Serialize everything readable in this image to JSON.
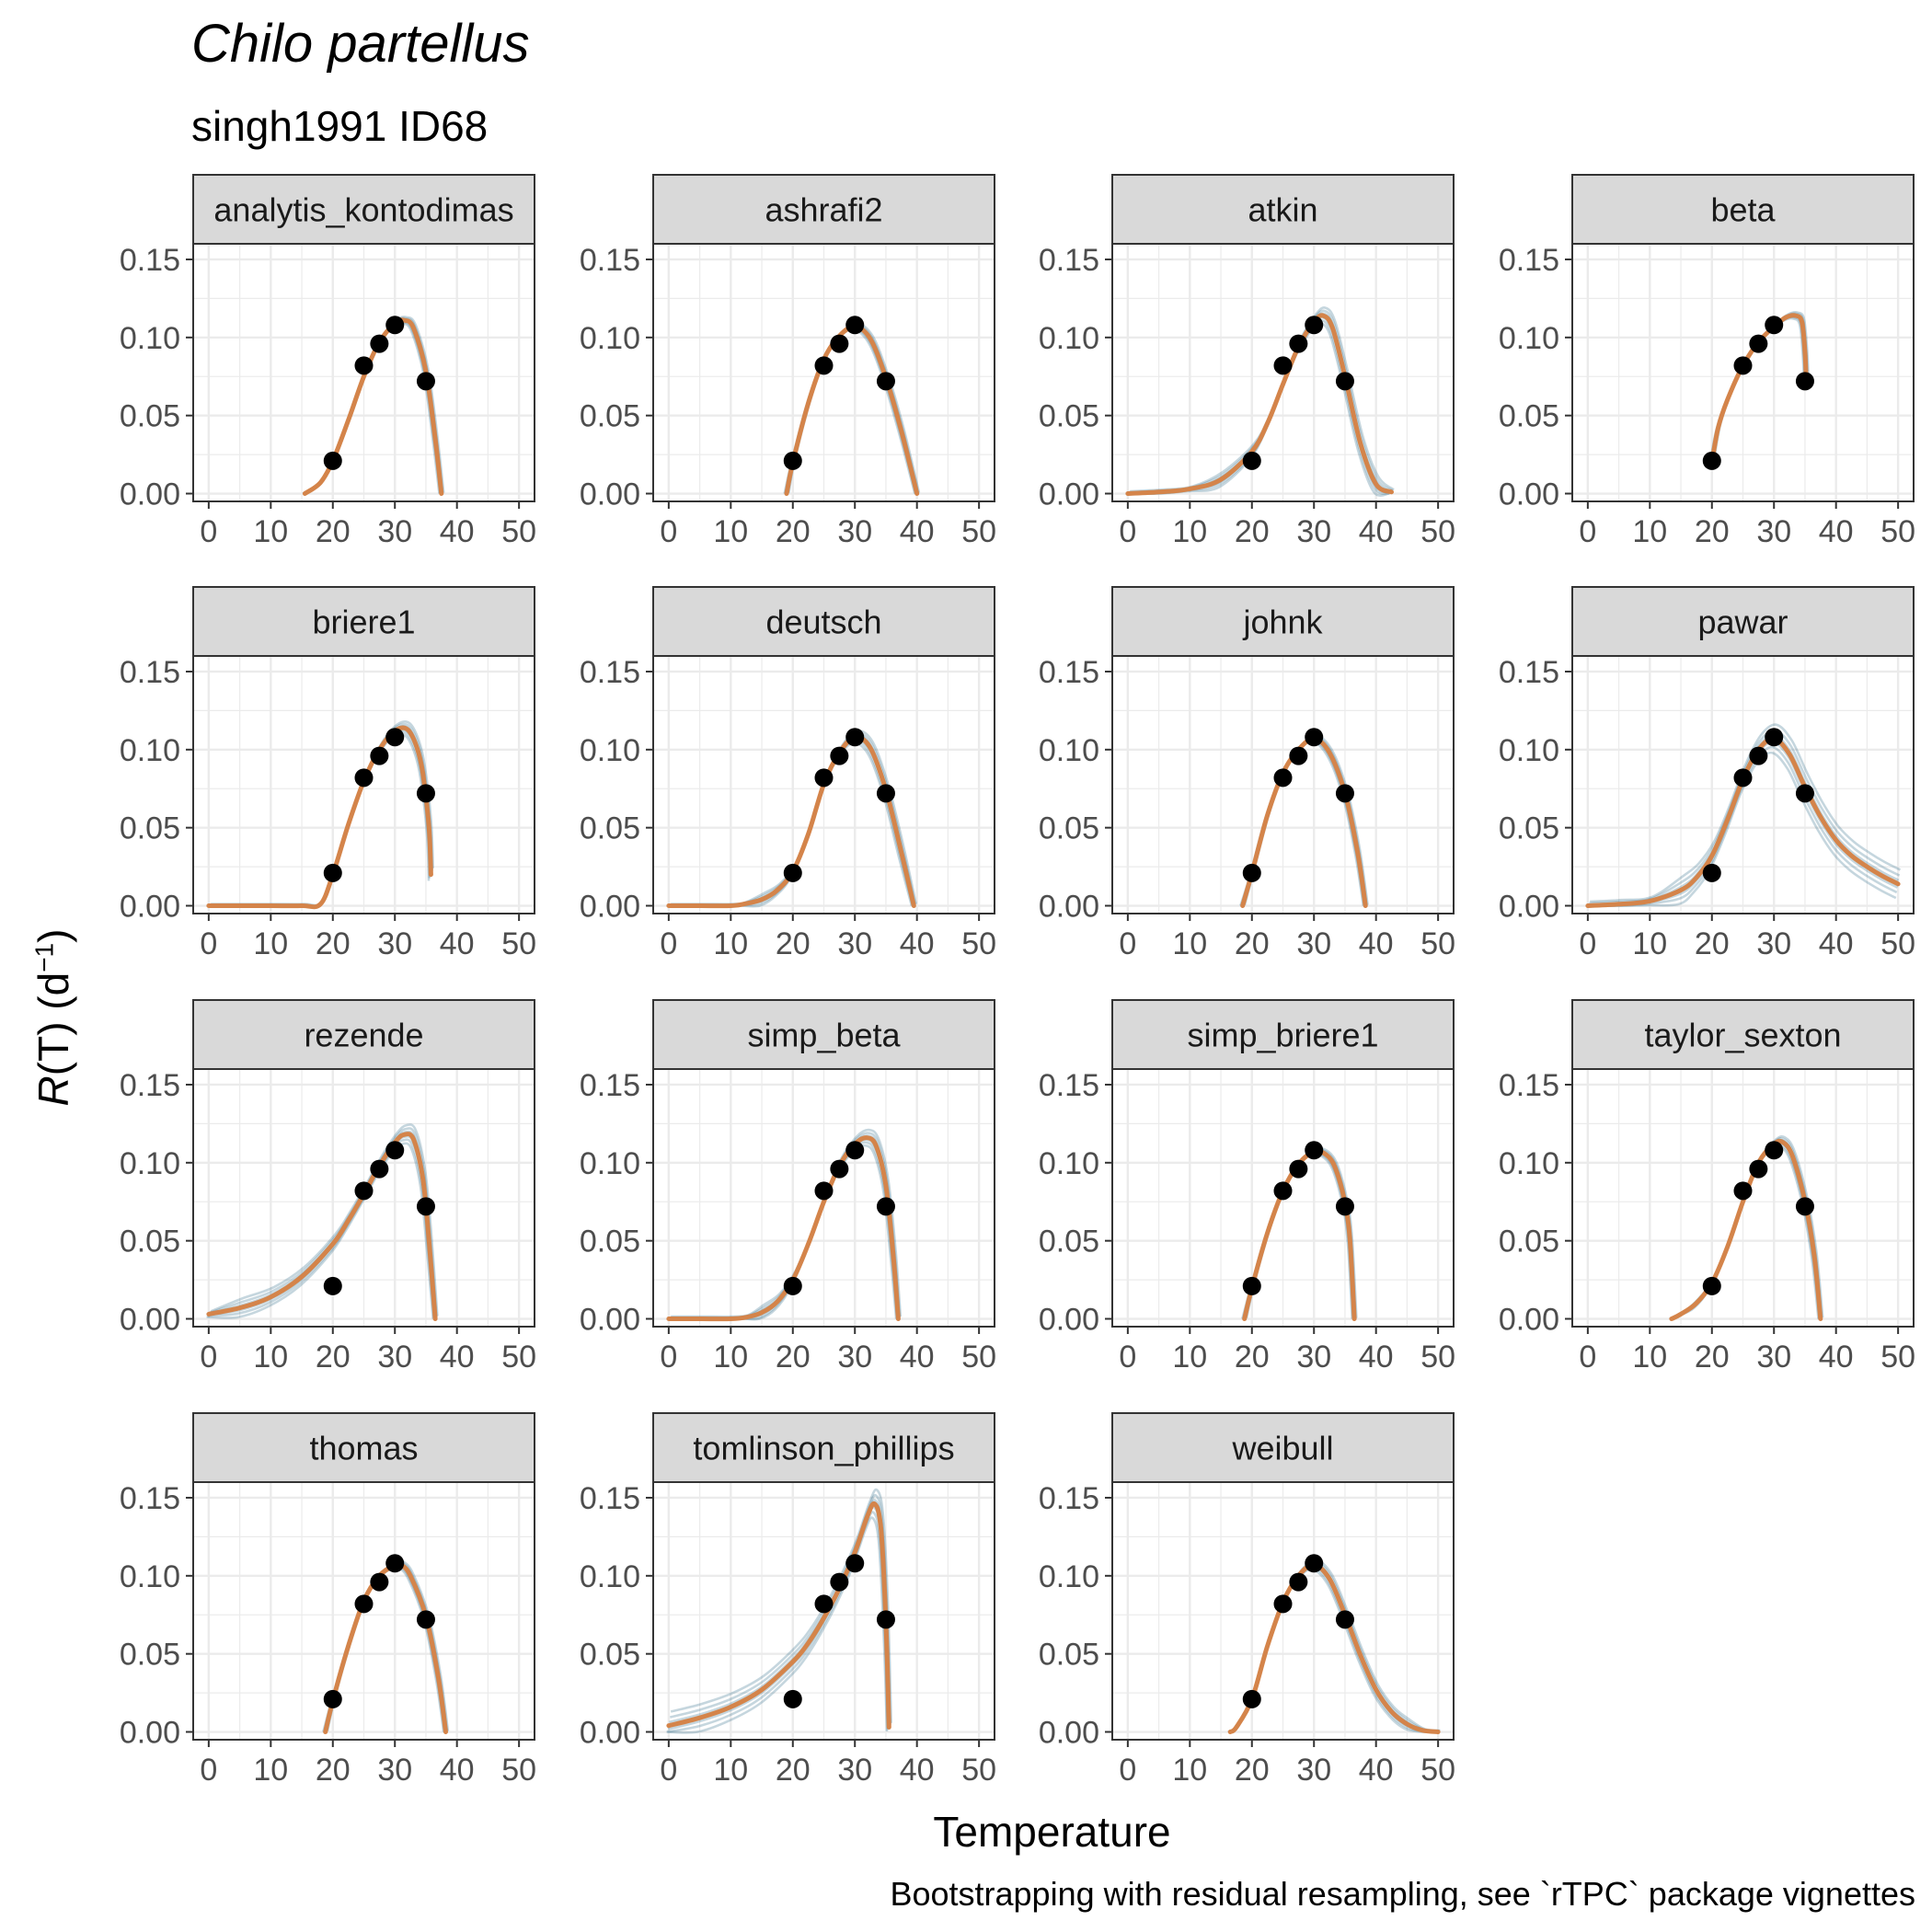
{
  "title": "Chilo partellus",
  "subtitle": "singh1991 ID68",
  "caption": "Bootstrapping with residual resampling, see `rTPC` package vignettes",
  "colors": {
    "fit": "#d4844a",
    "boot": "#2f6b8a",
    "points": "#000000",
    "strip_fill": "#d9d9d9",
    "grid": "#ebebeb"
  },
  "chart_data": {
    "type": "line",
    "facet_layout": {
      "columns": 4,
      "rows": 4
    },
    "xlabel": "Temperature",
    "ylabel": {
      "main": "R",
      "rest": "(T) (d",
      "sup": "−1",
      "close": ")"
    },
    "xlim": [
      -2.5,
      52.5
    ],
    "ylim": [
      -0.005,
      0.16
    ],
    "xticks": [
      0,
      10,
      20,
      30,
      40,
      50
    ],
    "yticks": [
      0.0,
      0.05,
      0.1,
      0.15
    ],
    "ytick_labels": [
      "0.00",
      "0.05",
      "0.10",
      "0.15"
    ],
    "observations": {
      "x": [
        20,
        25,
        27.5,
        30,
        35
      ],
      "y": [
        0.021,
        0.082,
        0.096,
        0.108,
        0.072
      ]
    },
    "panels": [
      {
        "name": "analytis_kontodimas",
        "fit": {
          "x": [
            15.5,
            18,
            20,
            22.5,
            25,
            27.5,
            30,
            31.5,
            33,
            35,
            36.5,
            37.5
          ],
          "y": [
            0,
            0.007,
            0.021,
            0.047,
            0.075,
            0.097,
            0.109,
            0.111,
            0.106,
            0.078,
            0.035,
            0
          ]
        },
        "boot_spread": 0.002
      },
      {
        "name": "ashrafi2",
        "fit": {
          "x": [
            19,
            20,
            22.5,
            25,
            27.5,
            30,
            32.5,
            35,
            37.5,
            40
          ],
          "y": [
            0,
            0.02,
            0.058,
            0.086,
            0.101,
            0.107,
            0.099,
            0.074,
            0.04,
            0
          ]
        },
        "boot_spread": 0.002
      },
      {
        "name": "atkin",
        "fit": {
          "x": [
            0,
            5,
            10,
            15,
            20,
            22.5,
            25,
            27.5,
            30,
            31.5,
            33,
            35,
            37.5,
            40,
            42.5
          ],
          "y": [
            0,
            0.001,
            0.003,
            0.009,
            0.027,
            0.045,
            0.07,
            0.094,
            0.11,
            0.114,
            0.106,
            0.075,
            0.032,
            0.006,
            0.001
          ]
        },
        "boot_spread": 0.005
      },
      {
        "name": "beta",
        "fit": {
          "x": [
            20,
            21,
            22.5,
            25,
            27.5,
            30,
            32,
            33.5,
            34.5,
            35,
            35.2
          ],
          "y": [
            0.02,
            0.042,
            0.06,
            0.082,
            0.097,
            0.107,
            0.113,
            0.114,
            0.11,
            0.09,
            0.072
          ]
        },
        "boot_spread": 0.002
      },
      {
        "name": "briere1",
        "fit": {
          "x": [
            0,
            5,
            10,
            15,
            18,
            20,
            22.5,
            25,
            27.5,
            30,
            32,
            33.5,
            34.5,
            35.5,
            35.8
          ],
          "y": [
            0,
            0,
            0,
            0,
            0.001,
            0.02,
            0.052,
            0.08,
            0.1,
            0.112,
            0.113,
            0.102,
            0.085,
            0.05,
            0.02
          ]
        },
        "boot_spread": 0.004
      },
      {
        "name": "deutsch",
        "fit": {
          "x": [
            0,
            5,
            10,
            12,
            15,
            17.5,
            20,
            22.5,
            25,
            27.5,
            30,
            32.5,
            35,
            37.5,
            39.5
          ],
          "y": [
            0,
            0,
            0,
            0.001,
            0.004,
            0.01,
            0.022,
            0.046,
            0.078,
            0.098,
            0.108,
            0.101,
            0.074,
            0.034,
            0
          ]
        },
        "boot_spread": 0.004
      },
      {
        "name": "johnk",
        "fit": {
          "x": [
            18.5,
            20,
            22.5,
            25,
            27.5,
            30,
            32.5,
            35,
            37,
            38.3
          ],
          "y": [
            0,
            0.021,
            0.058,
            0.085,
            0.1,
            0.107,
            0.098,
            0.072,
            0.035,
            0
          ]
        },
        "boot_spread": 0.002
      },
      {
        "name": "pawar",
        "fit": {
          "x": [
            0,
            5,
            10,
            15,
            17.5,
            20,
            22.5,
            25,
            27.5,
            30,
            32.5,
            35,
            37.5,
            40,
            42.5,
            45,
            47.5,
            50
          ],
          "y": [
            0,
            0.001,
            0.003,
            0.01,
            0.018,
            0.032,
            0.055,
            0.081,
            0.1,
            0.107,
            0.097,
            0.076,
            0.057,
            0.042,
            0.032,
            0.025,
            0.019,
            0.014
          ]
        },
        "boot_spread": 0.009
      },
      {
        "name": "rezende",
        "fit": {
          "x": [
            0,
            5,
            10,
            15,
            20,
            22.5,
            25,
            27.5,
            30,
            31.5,
            33,
            34.5,
            35.5,
            36.5
          ],
          "y": [
            0.003,
            0.007,
            0.014,
            0.027,
            0.048,
            0.063,
            0.08,
            0.098,
            0.113,
            0.118,
            0.115,
            0.09,
            0.05,
            0
          ]
        },
        "boot_spread": 0.006
      },
      {
        "name": "simp_beta",
        "fit": {
          "x": [
            0,
            5,
            10,
            12.5,
            15,
            17.5,
            20,
            22.5,
            25,
            27.5,
            30,
            32,
            33.5,
            35,
            36.2,
            37
          ],
          "y": [
            0,
            0,
            0,
            0.001,
            0.004,
            0.011,
            0.025,
            0.048,
            0.075,
            0.098,
            0.112,
            0.116,
            0.11,
            0.085,
            0.04,
            0
          ]
        },
        "boot_spread": 0.005
      },
      {
        "name": "simp_briere1",
        "fit": {
          "x": [
            18.8,
            20,
            22.5,
            25,
            27.5,
            30,
            32,
            33.5,
            35,
            35.8,
            36.5
          ],
          "y": [
            0,
            0.02,
            0.055,
            0.082,
            0.099,
            0.107,
            0.105,
            0.096,
            0.074,
            0.05,
            0
          ]
        },
        "boot_spread": 0.002
      },
      {
        "name": "taylor_sexton",
        "fit": {
          "x": [
            13.5,
            15,
            17.5,
            20,
            22.5,
            25,
            27.5,
            30,
            31.5,
            33,
            35,
            36.5,
            37.5
          ],
          "y": [
            0,
            0.003,
            0.01,
            0.023,
            0.046,
            0.075,
            0.1,
            0.112,
            0.113,
            0.104,
            0.075,
            0.04,
            0
          ]
        },
        "boot_spread": 0.003
      },
      {
        "name": "thomas",
        "fit": {
          "x": [
            18.8,
            20,
            22.5,
            25,
            27.5,
            30,
            31,
            32.5,
            35,
            37,
            38.2
          ],
          "y": [
            0,
            0.02,
            0.055,
            0.084,
            0.1,
            0.107,
            0.107,
            0.1,
            0.074,
            0.035,
            0
          ]
        },
        "boot_spread": 0.002
      },
      {
        "name": "tomlinson_phillips",
        "fit": {
          "x": [
            0,
            5,
            10,
            15,
            20,
            22.5,
            25,
            27.5,
            30,
            32,
            33.2,
            34.2,
            35,
            35.5
          ],
          "y": [
            0.004,
            0.009,
            0.016,
            0.027,
            0.045,
            0.057,
            0.073,
            0.092,
            0.115,
            0.138,
            0.146,
            0.13,
            0.07,
            0.003
          ]
        },
        "boot_spread": 0.009
      },
      {
        "name": "weibull",
        "fit": {
          "x": [
            16.5,
            17.5,
            20,
            22.5,
            25,
            27.5,
            30,
            32.5,
            35,
            37.5,
            40,
            42.5,
            45,
            47.5,
            50
          ],
          "y": [
            0,
            0.003,
            0.021,
            0.055,
            0.083,
            0.1,
            0.107,
            0.098,
            0.075,
            0.049,
            0.027,
            0.013,
            0.005,
            0.001,
            0
          ]
        },
        "boot_spread": 0.003
      }
    ]
  }
}
